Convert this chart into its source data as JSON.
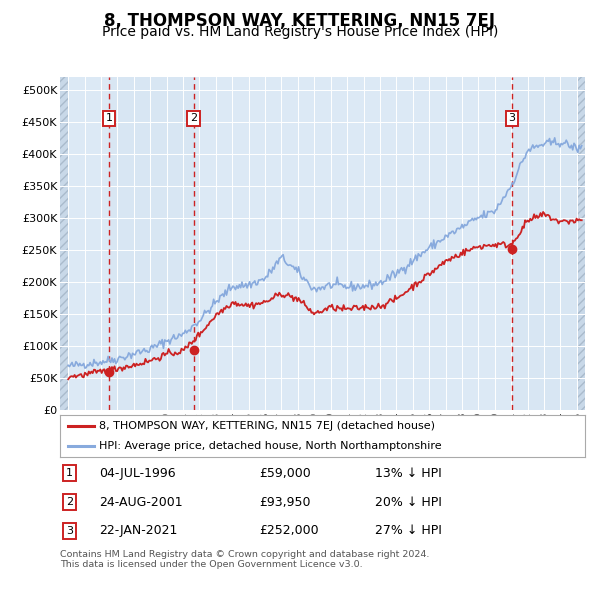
{
  "title": "8, THOMPSON WAY, KETTERING, NN15 7EJ",
  "subtitle": "Price paid vs. HM Land Registry's House Price Index (HPI)",
  "title_fontsize": 12,
  "subtitle_fontsize": 10,
  "ylim": [
    0,
    520000
  ],
  "yticks": [
    0,
    50000,
    100000,
    150000,
    200000,
    250000,
    300000,
    350000,
    400000,
    450000,
    500000
  ],
  "ytick_labels": [
    "£0",
    "£50K",
    "£100K",
    "£150K",
    "£200K",
    "£250K",
    "£300K",
    "£350K",
    "£400K",
    "£450K",
    "£500K"
  ],
  "background_color": "#ffffff",
  "plot_bg_color": "#dce9f5",
  "hatch_color": "#c8d8e8",
  "grid_color": "#ffffff",
  "red_line_color": "#cc2222",
  "blue_line_color": "#88aadd",
  "dashed_line_color": "#cc2222",
  "marker_color": "#cc2222",
  "purchases": [
    {
      "label": "1",
      "date_x": 1996.5,
      "price": 59000,
      "date_str": "04-JUL-1996",
      "price_str": "£59,000",
      "hpi_str": "13% ↓ HPI"
    },
    {
      "label": "2",
      "date_x": 2001.65,
      "price": 93950,
      "date_str": "24-AUG-2001",
      "price_str": "£93,950",
      "hpi_str": "20% ↓ HPI"
    },
    {
      "label": "3",
      "date_x": 2021.06,
      "price": 252000,
      "date_str": "22-JAN-2021",
      "price_str": "£252,000",
      "hpi_str": "27% ↓ HPI"
    }
  ],
  "legend_entries": [
    {
      "label": "8, THOMPSON WAY, KETTERING, NN15 7EJ (detached house)",
      "color": "#cc2222"
    },
    {
      "label": "HPI: Average price, detached house, North Northamptonshire",
      "color": "#88aadd"
    }
  ],
  "footer_text": "Contains HM Land Registry data © Crown copyright and database right 2024.\nThis data is licensed under the Open Government Licence v3.0.",
  "xmin": 1993.5,
  "xmax": 2025.5,
  "chart_xstart": 1994.0,
  "chart_xend": 2025.0
}
